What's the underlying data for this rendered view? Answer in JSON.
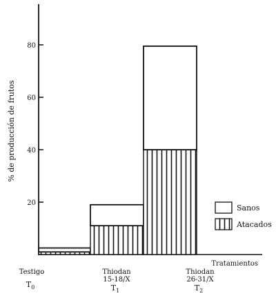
{
  "chart_data": {
    "type": "bar",
    "stacked": true,
    "ylabel": "% de producción de frutos",
    "xlabel": "Tratamientos",
    "ylim": [
      0,
      100
    ],
    "yticks": [
      20,
      40,
      60,
      80
    ],
    "grid": false,
    "legend_position": "right",
    "categories": [
      {
        "line1": "Testigo",
        "line2": "",
        "code": "T",
        "sub": "0"
      },
      {
        "line1": "Thiodan",
        "line2": "15-18/X",
        "code": "T",
        "sub": "1"
      },
      {
        "line1": "Thiodan",
        "line2": "26-31/X",
        "code": "T",
        "sub": "2"
      }
    ],
    "series": [
      {
        "name": "Atacados",
        "values": [
          1,
          11,
          40
        ],
        "pattern": "vertical-hatch"
      },
      {
        "name": "Sanos",
        "values": [
          1.5,
          8,
          39.5
        ],
        "pattern": "plain"
      }
    ]
  }
}
